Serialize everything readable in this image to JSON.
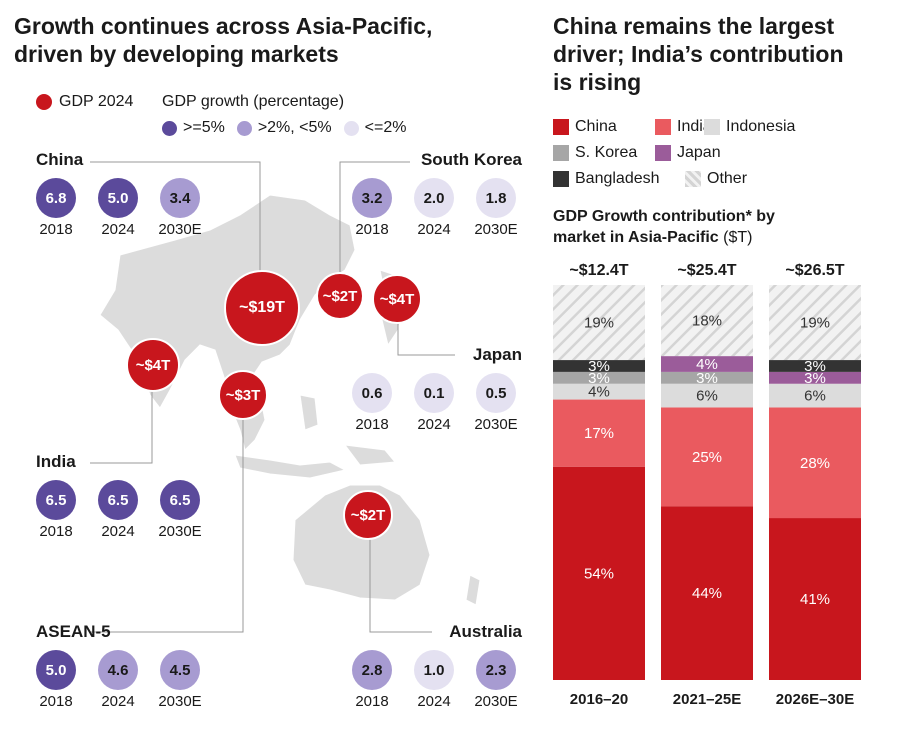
{
  "left": {
    "title_line1": "Growth continues across Asia-Pacific,",
    "title_line2": "driven by developing markets",
    "legend": {
      "gdp_label": "GDP 2024",
      "growth_label": "GDP growth (percentage)",
      "high": ">=5%",
      "mid": ">2%, <5%",
      "low": "<=2%"
    },
    "colors": {
      "high": "#5b4a9b",
      "mid": "#a79bd1",
      "low": "#e4e1f1",
      "gdp": "#c8161d",
      "map": "#dcdcdc"
    },
    "years": [
      "2018",
      "2024",
      "2030E"
    ],
    "regions": [
      {
        "name": "China",
        "values": [
          "6.8",
          "5.0",
          "3.4"
        ],
        "levels": [
          "high",
          "high",
          "mid"
        ]
      },
      {
        "name": "South Korea",
        "values": [
          "3.2",
          "2.0",
          "1.8"
        ],
        "levels": [
          "mid",
          "low",
          "low"
        ]
      },
      {
        "name": "Japan",
        "values": [
          "0.6",
          "0.1",
          "0.5"
        ],
        "levels": [
          "low",
          "low",
          "low"
        ]
      },
      {
        "name": "India",
        "values": [
          "6.5",
          "6.5",
          "6.5"
        ],
        "levels": [
          "high",
          "high",
          "high"
        ]
      },
      {
        "name": "ASEAN-5",
        "values": [
          "5.0",
          "4.6",
          "4.5"
        ],
        "levels": [
          "high",
          "mid",
          "mid"
        ]
      },
      {
        "name": "Australia",
        "values": [
          "2.8",
          "1.0",
          "2.3"
        ],
        "levels": [
          "mid",
          "low",
          "mid"
        ]
      }
    ],
    "gdp_bubbles": [
      "~$19T",
      "~$2T",
      "~$4T",
      "~$4T",
      "~$3T",
      "~$2T"
    ]
  },
  "right": {
    "title_line1": "China remains the largest",
    "title_line2": "driver; India’s contribution",
    "title_line3": "is rising",
    "subtitle_bold_1": "GDP Growth contribution* by",
    "subtitle_bold_2": "market in Asia-Pacific",
    "subtitle_unit": "($T)"
  },
  "chart_data": {
    "type": "bar",
    "stacked": true,
    "categories": [
      "2016–20",
      "2021–25E",
      "2026E–30E"
    ],
    "totals": [
      "~$12.4T",
      "~$25.4T",
      "~$26.5T"
    ],
    "series": [
      {
        "name": "China",
        "color": "#c8161d",
        "values": [
          54,
          44,
          41
        ]
      },
      {
        "name": "India",
        "color": "#ea5a5f",
        "values": [
          17,
          25,
          28
        ]
      },
      {
        "name": "Indonesia",
        "color": "#dcdcdc",
        "values": [
          4,
          6,
          6
        ]
      },
      {
        "name": "S. Korea",
        "color": "#a6a6a6",
        "values": [
          3,
          3,
          0
        ]
      },
      {
        "name": "Japan",
        "color": "#9b5c9a",
        "values": [
          0,
          4,
          3
        ]
      },
      {
        "name": "Bangladesh",
        "color": "#333333",
        "values": [
          3,
          0,
          3
        ]
      },
      {
        "name": "Other",
        "color": "hatch",
        "values": [
          19,
          18,
          19
        ]
      }
    ],
    "value_labels": [
      [
        "54%",
        "17%",
        "4%",
        "3%",
        "",
        "3%",
        "19%"
      ],
      [
        "44%",
        "25%",
        "6%",
        "3%",
        "4%",
        "",
        "18%"
      ],
      [
        "41%",
        "28%",
        "6%",
        "",
        "3%",
        "3%",
        "19%"
      ]
    ],
    "ylim": [
      0,
      100
    ]
  }
}
